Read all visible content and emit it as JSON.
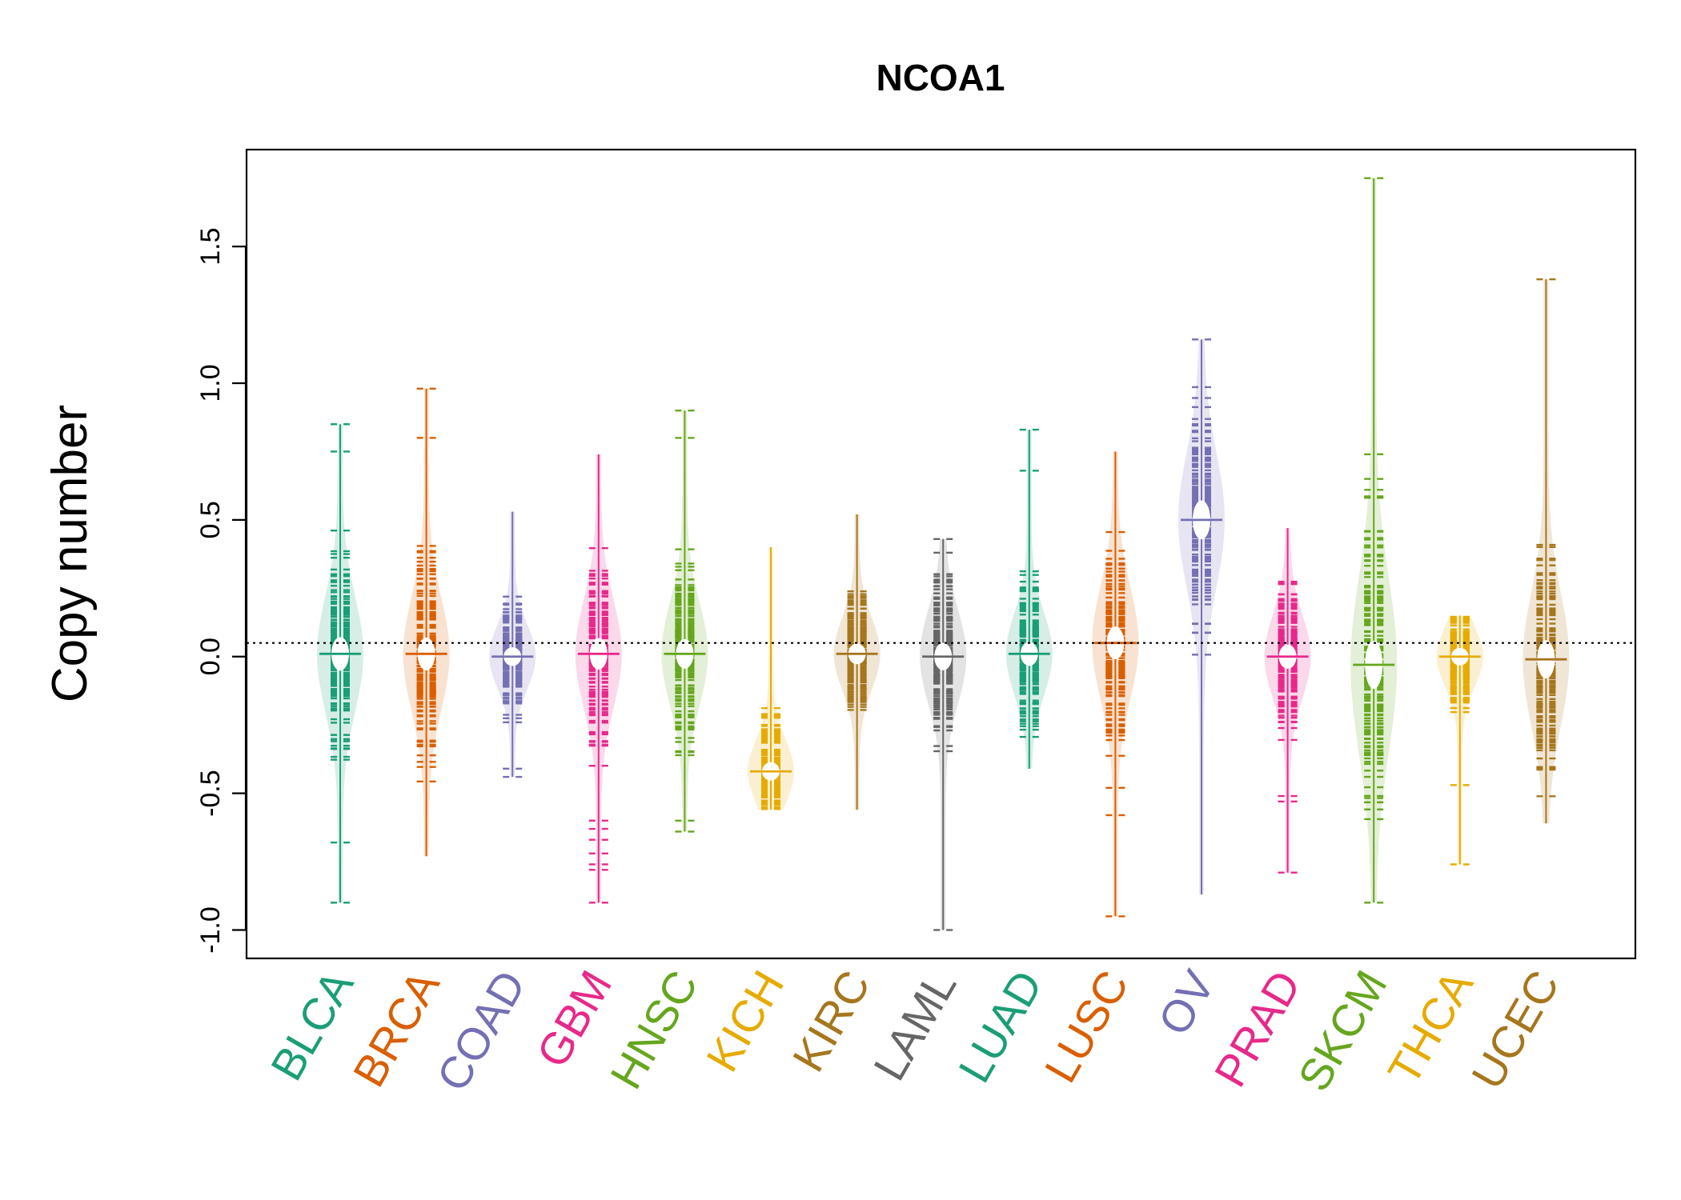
{
  "chart_data": {
    "type": "beanplot",
    "title": "NCOA1",
    "xlabel": "",
    "ylabel": "Copy number",
    "ylim": [
      -1.1,
      1.85
    ],
    "yticks": [
      -1.0,
      -0.5,
      0.0,
      0.5,
      1.0,
      1.5
    ],
    "ytick_labels": [
      "-1.0",
      "-0.5",
      "0.0",
      "0.5",
      "1.0",
      "1.5"
    ],
    "reference_line": 0.05,
    "reference_line_style": "dotted",
    "grid": false,
    "categories": [
      "BLCA",
      "BRCA",
      "COAD",
      "GBM",
      "HNSC",
      "KICH",
      "KIRC",
      "LAML",
      "LUAD",
      "LUSC",
      "OV",
      "PRAD",
      "SKCM",
      "THCA",
      "UCEC"
    ],
    "series": [
      {
        "category": "BLCA",
        "color": "#1b9e77",
        "min": -0.9,
        "max": 0.85,
        "mean": 0.01,
        "outliers": [
          0.85,
          0.75,
          -0.68,
          -0.9
        ]
      },
      {
        "category": "BRCA",
        "color": "#d95f02",
        "min": -0.73,
        "max": 0.98,
        "mean": 0.01,
        "outliers": [
          0.98,
          0.8
        ]
      },
      {
        "category": "COAD",
        "color": "#7570b3",
        "min": -0.44,
        "max": 0.53,
        "mean": 0.0,
        "outliers": [
          -0.41,
          -0.44
        ]
      },
      {
        "category": "GBM",
        "color": "#e7298a",
        "min": -0.9,
        "max": 0.74,
        "mean": 0.01,
        "outliers": [
          -0.6,
          -0.63,
          -0.67,
          -0.72,
          -0.76,
          -0.78,
          -0.9
        ]
      },
      {
        "category": "HNSC",
        "color": "#66a61e",
        "min": -0.64,
        "max": 0.9,
        "mean": 0.01,
        "outliers": [
          0.9,
          0.8,
          -0.6,
          -0.64
        ]
      },
      {
        "category": "KICH",
        "color": "#e6ab02",
        "min": -0.56,
        "max": 0.4,
        "mean": -0.42,
        "outliers": []
      },
      {
        "category": "KIRC",
        "color": "#a6761d",
        "min": -0.56,
        "max": 0.52,
        "mean": 0.01,
        "outliers": []
      },
      {
        "category": "LAML",
        "color": "#666666",
        "min": -1.0,
        "max": 0.43,
        "mean": 0.0,
        "outliers": [
          0.43,
          0.38,
          -0.18,
          -0.27,
          -1.0
        ]
      },
      {
        "category": "LUAD",
        "color": "#1b9e77",
        "min": -0.41,
        "max": 0.83,
        "mean": 0.01,
        "outliers": [
          0.83,
          0.68
        ]
      },
      {
        "category": "LUSC",
        "color": "#d95f02",
        "min": -0.95,
        "max": 0.75,
        "mean": 0.05,
        "outliers": [
          -0.48,
          -0.58,
          -0.95
        ]
      },
      {
        "category": "OV",
        "color": "#7570b3",
        "min": -0.87,
        "max": 1.16,
        "mean": 0.5,
        "outliers": [
          1.16
        ]
      },
      {
        "category": "PRAD",
        "color": "#e7298a",
        "min": -0.79,
        "max": 0.47,
        "mean": 0.0,
        "outliers": [
          -0.51,
          -0.53,
          -0.79
        ]
      },
      {
        "category": "SKCM",
        "color": "#66a61e",
        "min": -0.9,
        "max": 1.75,
        "mean": -0.03,
        "outliers": [
          1.75,
          0.74,
          0.65,
          0.61,
          -0.9
        ]
      },
      {
        "category": "THCA",
        "color": "#e6ab02",
        "min": -0.76,
        "max": 0.15,
        "mean": 0.0,
        "outliers": [
          -0.47,
          -0.76
        ]
      },
      {
        "category": "UCEC",
        "color": "#a6761d",
        "min": -0.61,
        "max": 1.38,
        "mean": -0.01,
        "outliers": [
          1.38
        ]
      }
    ]
  }
}
